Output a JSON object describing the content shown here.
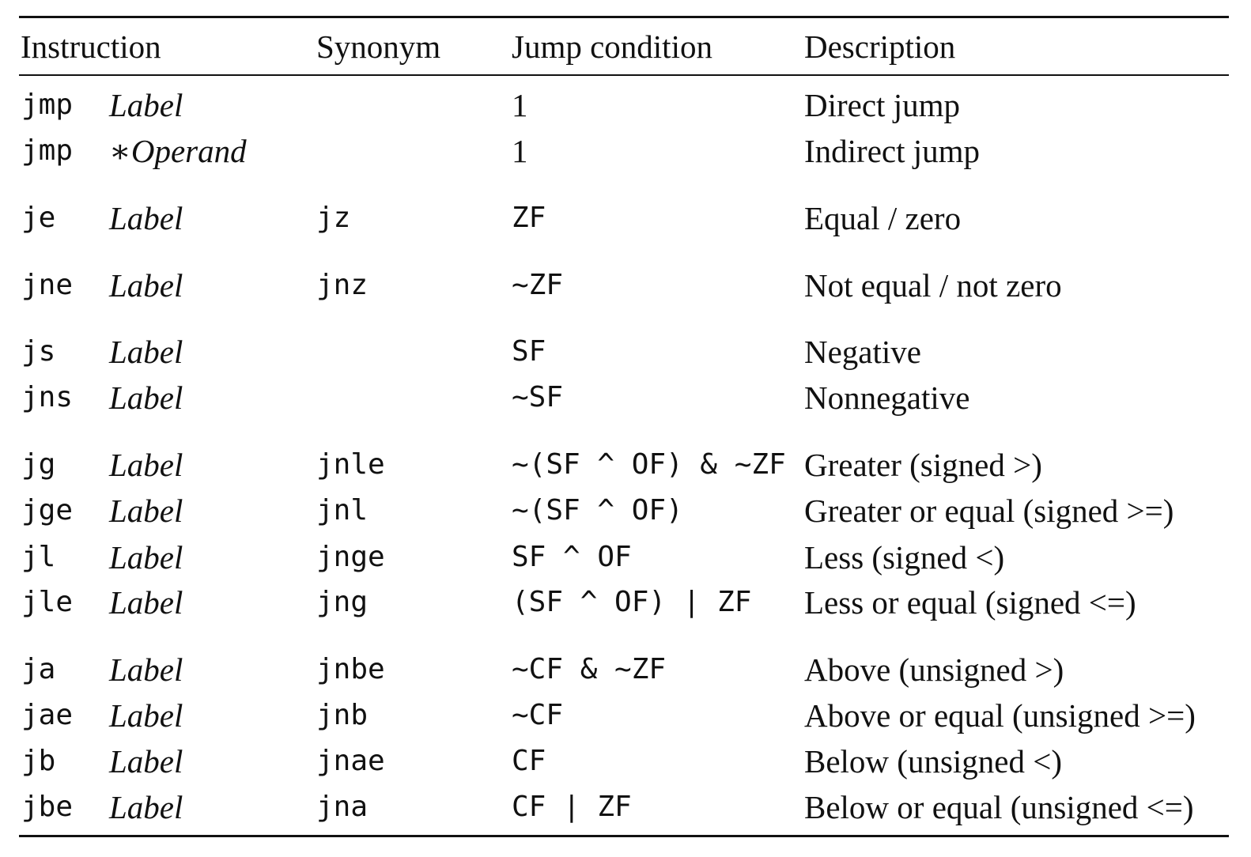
{
  "header": {
    "instruction": "Instruction",
    "synonym": "Synonym",
    "jump_condition": "Jump condition",
    "description": "Description"
  },
  "rows": [
    {
      "op": "jmp",
      "arg": "Label",
      "synonym": "",
      "condition": "1",
      "description": "Direct jump"
    },
    {
      "op": "jmp",
      "arg": "∗Operand",
      "synonym": "",
      "condition": "1",
      "description": "Indirect jump"
    },
    {
      "op": "je",
      "arg": "Label",
      "synonym": "jz",
      "condition": "ZF",
      "description": "Equal / zero"
    },
    {
      "op": "jne",
      "arg": "Label",
      "synonym": "jnz",
      "condition": "~ZF",
      "description": "Not equal / not zero"
    },
    {
      "op": "js",
      "arg": "Label",
      "synonym": "",
      "condition": "SF",
      "description": "Negative"
    },
    {
      "op": "jns",
      "arg": "Label",
      "synonym": "",
      "condition": "~SF",
      "description": "Nonnegative"
    },
    {
      "op": "jg",
      "arg": "Label",
      "synonym": "jnle",
      "condition": "~(SF ^ OF) & ~ZF",
      "description": "Greater (signed >)"
    },
    {
      "op": "jge",
      "arg": "Label",
      "synonym": "jnl",
      "condition": "~(SF ^ OF)",
      "description": "Greater or equal (signed >=)"
    },
    {
      "op": "jl",
      "arg": "Label",
      "synonym": "jnge",
      "condition": "SF ^ OF",
      "description": "Less (signed <)"
    },
    {
      "op": "jle",
      "arg": "Label",
      "synonym": "jng",
      "condition": "(SF ^ OF) | ZF",
      "description": "Less or equal (signed <=)"
    },
    {
      "op": "ja",
      "arg": "Label",
      "synonym": "jnbe",
      "condition": "~CF & ~ZF",
      "description": "Above (unsigned >)"
    },
    {
      "op": "jae",
      "arg": "Label",
      "synonym": "jnb",
      "condition": "~CF",
      "description": "Above or equal (unsigned >=)"
    },
    {
      "op": "jb",
      "arg": "Label",
      "synonym": "jnae",
      "condition": "CF",
      "description": "Below (unsigned <)"
    },
    {
      "op": "jbe",
      "arg": "Label",
      "synonym": "jna",
      "condition": "CF | ZF",
      "description": "Below or equal (unsigned <=)"
    }
  ]
}
